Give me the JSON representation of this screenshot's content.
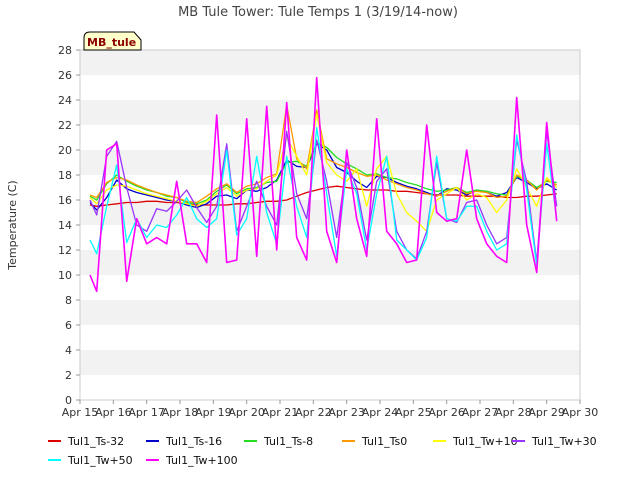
{
  "chart_data": {
    "type": "line",
    "title": "MB Tule Tower: Tule Temps 1 (3/19/14-now)",
    "xlabel": "",
    "ylabel": "Temperature (C)",
    "ylim": [
      0,
      28
    ],
    "yticks": [
      0,
      2,
      4,
      6,
      8,
      10,
      12,
      14,
      16,
      18,
      20,
      22,
      24,
      26,
      28
    ],
    "xlim": [
      15,
      30
    ],
    "xticks": [
      15,
      16,
      17,
      18,
      19,
      20,
      21,
      22,
      23,
      24,
      25,
      26,
      27,
      28,
      29,
      30
    ],
    "xtick_labels": [
      "Apr 15",
      "Apr 16",
      "Apr 17",
      "Apr 18",
      "Apr 19",
      "Apr 20",
      "Apr 21",
      "Apr 22",
      "Apr 23",
      "Apr 24",
      "Apr 25",
      "Apr 26",
      "Apr 27",
      "Apr 28",
      "Apr 29",
      "Apr 30"
    ],
    "grid": "horizontal-bands",
    "legend_placement": "bottom",
    "badge": "MB_tule",
    "x": [
      15.3,
      15.5,
      15.8,
      16.1,
      16.4,
      16.7,
      17.0,
      17.3,
      17.6,
      17.9,
      18.2,
      18.5,
      18.8,
      19.1,
      19.4,
      19.7,
      20.0,
      20.3,
      20.6,
      20.9,
      21.2,
      21.5,
      21.8,
      22.1,
      22.4,
      22.7,
      23.0,
      23.3,
      23.6,
      23.9,
      24.2,
      24.5,
      24.8,
      25.1,
      25.4,
      25.7,
      26.0,
      26.3,
      26.6,
      26.9,
      27.2,
      27.5,
      27.8,
      28.1,
      28.4,
      28.7,
      29.0,
      29.3
    ],
    "series": [
      {
        "name": "Tul1_Ts-32",
        "color": "#dd0000",
        "values": [
          15.6,
          15.5,
          15.6,
          15.7,
          15.8,
          15.8,
          15.9,
          15.9,
          15.8,
          15.8,
          15.7,
          15.6,
          15.6,
          15.6,
          15.6,
          15.7,
          15.7,
          15.8,
          15.9,
          15.9,
          16.0,
          16.3,
          16.6,
          16.8,
          17.0,
          17.1,
          17.0,
          16.9,
          16.8,
          16.8,
          16.8,
          16.7,
          16.7,
          16.6,
          16.5,
          16.4,
          16.4,
          16.4,
          16.3,
          16.3,
          16.3,
          16.3,
          16.2,
          16.2,
          16.3,
          16.3,
          16.4,
          16.5
        ]
      },
      {
        "name": "Tul1_Ts-16",
        "color": "#0000cc",
        "values": [
          15.8,
          15.2,
          16.2,
          17.6,
          16.9,
          16.6,
          16.4,
          16.2,
          16.0,
          15.9,
          15.6,
          15.4,
          15.7,
          16.3,
          16.4,
          16.1,
          16.8,
          16.7,
          17.0,
          17.6,
          19.2,
          18.7,
          18.6,
          20.5,
          20.0,
          18.6,
          18.2,
          17.5,
          17.0,
          17.9,
          17.8,
          17.4,
          17.1,
          16.9,
          16.6,
          16.3,
          16.9,
          16.8,
          16.4,
          16.8,
          16.6,
          16.3,
          16.6,
          17.8,
          17.4,
          16.9,
          17.3,
          16.8
        ]
      },
      {
        "name": "Tul1_Ts-8",
        "color": "#22dd22",
        "values": [
          16.3,
          16.0,
          17.3,
          18.0,
          17.5,
          17.1,
          16.8,
          16.6,
          16.3,
          16.2,
          15.8,
          15.7,
          16.0,
          16.7,
          17.2,
          16.5,
          16.9,
          17.0,
          17.4,
          17.5,
          19.0,
          19.1,
          18.7,
          20.6,
          20.2,
          19.4,
          18.9,
          18.5,
          18.0,
          18.1,
          17.8,
          17.7,
          17.4,
          17.2,
          16.9,
          16.7,
          16.8,
          17.0,
          16.6,
          16.8,
          16.7,
          16.5,
          16.4,
          17.9,
          17.6,
          17.0,
          17.5,
          17.4
        ]
      },
      {
        "name": "Tul1_Ts0",
        "color": "#ff9900",
        "values": [
          16.4,
          16.2,
          17.4,
          17.8,
          17.6,
          17.2,
          16.9,
          16.6,
          16.4,
          16.2,
          15.9,
          15.8,
          16.3,
          16.9,
          17.3,
          16.6,
          17.1,
          17.3,
          17.8,
          18.1,
          23.6,
          19.3,
          18.5,
          23.2,
          19.3,
          18.9,
          18.6,
          18.2,
          17.9,
          18.0,
          17.6,
          17.3,
          17.0,
          16.8,
          16.5,
          16.3,
          16.7,
          17.0,
          16.5,
          16.7,
          16.6,
          16.2,
          16.3,
          18.0,
          17.6,
          16.8,
          17.6,
          17.2
        ]
      },
      {
        "name": "Tul1_Tw+10",
        "color": "#ffff00",
        "values": [
          16.2,
          15.7,
          16.8,
          17.2,
          17.1,
          16.8,
          16.5,
          16.3,
          16.1,
          15.9,
          15.7,
          15.5,
          15.9,
          16.5,
          17.0,
          16.3,
          16.8,
          16.9,
          17.5,
          18.0,
          21.0,
          19.5,
          18.0,
          22.9,
          19.0,
          18.0,
          17.5,
          18.5,
          15.5,
          18.5,
          19.5,
          16.5,
          15.0,
          14.3,
          13.5,
          16.0,
          16.5,
          17.0,
          16.0,
          16.5,
          16.2,
          15.0,
          16.0,
          18.5,
          17.0,
          15.5,
          17.8,
          17.0
        ]
      },
      {
        "name": "Tul1_Tw+30",
        "color": "#9933ff",
        "values": [
          16.0,
          14.8,
          19.5,
          20.7,
          17.0,
          14.0,
          13.5,
          15.3,
          15.1,
          15.9,
          16.8,
          15.4,
          14.2,
          15.5,
          20.5,
          13.5,
          15.5,
          17.5,
          15.5,
          14.0,
          21.5,
          16.5,
          14.5,
          20.8,
          17.5,
          13.0,
          19.0,
          17.0,
          12.8,
          17.5,
          18.5,
          13.5,
          12.0,
          11.3,
          13.5,
          19.0,
          14.5,
          14.2,
          15.8,
          16.0,
          14.0,
          12.5,
          13.0,
          20.8,
          17.5,
          11.0,
          21.5,
          15.5
        ]
      },
      {
        "name": "Tul1_Tw+50",
        "color": "#00ffff",
        "values": [
          12.8,
          11.7,
          15.5,
          18.8,
          12.6,
          14.5,
          13.0,
          14.0,
          13.8,
          14.8,
          16.2,
          14.5,
          13.8,
          14.5,
          20.0,
          13.2,
          14.5,
          19.5,
          15.0,
          12.5,
          19.5,
          15.5,
          13.0,
          21.8,
          16.5,
          11.5,
          18.5,
          16.5,
          12.0,
          16.5,
          19.5,
          12.8,
          12.0,
          11.2,
          13.0,
          19.5,
          14.5,
          14.3,
          15.5,
          15.5,
          13.5,
          12.0,
          12.5,
          21.2,
          16.8,
          10.8,
          20.5,
          14.5
        ]
      },
      {
        "name": "Tul1_Tw+100",
        "color": "#ff00ff",
        "values": [
          10.0,
          8.7,
          20.0,
          20.5,
          9.5,
          14.5,
          12.5,
          13.0,
          12.5,
          17.5,
          12.5,
          12.5,
          11.0,
          22.8,
          11.0,
          11.2,
          22.5,
          11.5,
          23.5,
          12.0,
          23.8,
          13.0,
          11.2,
          25.8,
          13.5,
          11.0,
          20.0,
          14.5,
          11.5,
          22.5,
          13.5,
          12.5,
          11.0,
          11.2,
          22.0,
          15.0,
          14.3,
          14.5,
          20.0,
          14.5,
          12.5,
          11.5,
          11.0,
          24.2,
          14.0,
          10.2,
          22.2,
          14.3
        ]
      }
    ]
  }
}
